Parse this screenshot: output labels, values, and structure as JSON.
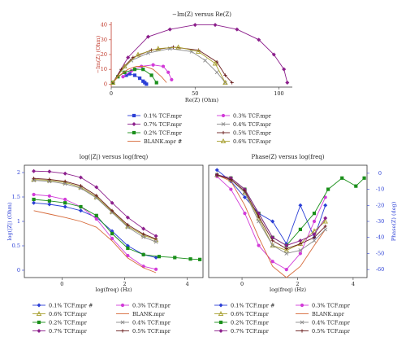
{
  "chart_data": [
    {
      "type": "line",
      "title": "−Im(Z) versus Re(Z)",
      "xlabel": "Re(Z) (Ohm)",
      "ylabel": "−Im(Z) (Ohm)",
      "xlim": [
        0,
        108
      ],
      "ylim": [
        -2,
        42
      ],
      "xticks": [
        0,
        50,
        100
      ],
      "yticks": [
        0,
        10,
        20,
        30,
        40
      ],
      "grid": false,
      "legend": "below",
      "series": [
        {
          "name": "0.1% TCF.mpr",
          "color": "#2b3fd6",
          "marker": "square",
          "x": [
            9,
            11,
            14,
            17,
            19,
            20,
            21
          ],
          "y": [
            6,
            7,
            6,
            4,
            2,
            1,
            0
          ]
        },
        {
          "name": "0.3% TCF.mpr",
          "color": "#d23bd8",
          "marker": "circle",
          "x": [
            7,
            12,
            18,
            25,
            31,
            34,
            36
          ],
          "y": [
            5,
            9,
            12,
            13,
            12,
            8,
            3
          ]
        },
        {
          "name": "0.7% TCF.mpr",
          "color": "#8c1f8c",
          "marker": "diamond",
          "x": [
            1,
            10,
            22,
            35,
            50,
            62,
            75,
            88,
            97,
            103,
            105
          ],
          "y": [
            1,
            18,
            32,
            37,
            40,
            40,
            37,
            30,
            20,
            10,
            1
          ]
        },
        {
          "name": "0.4% TCF.mpr",
          "color": "#8a8a8a",
          "marker": "cross",
          "x": [
            1,
            6,
            12,
            22,
            35,
            48,
            56,
            63,
            68
          ],
          "y": [
            1,
            9,
            16,
            21,
            24,
            22,
            16,
            8,
            1
          ]
        },
        {
          "name": "0.2% TCF.mpr",
          "color": "#1a8f1a",
          "marker": "square",
          "x": [
            1,
            4,
            8,
            14,
            19,
            24,
            27
          ],
          "y": [
            1,
            5,
            8,
            10,
            10,
            6,
            1
          ]
        },
        {
          "name": "0.5% TCF.mpr",
          "color": "#6b2020",
          "marker": "plus",
          "x": [
            1,
            6,
            13,
            24,
            37,
            52,
            63,
            68,
            72
          ],
          "y": [
            1,
            10,
            18,
            23,
            25,
            23,
            15,
            6,
            1
          ]
        },
        {
          "name": "BLANK.mpr #",
          "color": "#d66a3a",
          "marker": "none",
          "x": [
            1,
            5,
            10,
            15,
            20,
            25,
            30,
            33
          ],
          "y": [
            1,
            6,
            10,
            12,
            12,
            10,
            5,
            1
          ]
        },
        {
          "name": "0.6% TCF.mpr",
          "color": "#a8a030",
          "marker": "triangle",
          "x": [
            1,
            8,
            16,
            28,
            40,
            52,
            62,
            68
          ],
          "y": [
            1,
            12,
            20,
            24,
            25,
            22,
            14,
            1
          ]
        }
      ]
    },
    {
      "type": "line",
      "title": "log(|Z|) versus log(freq)",
      "xlabel": "log(freq) (Hz)",
      "ylabel": "log(|Z|) (Ohm)",
      "xlim": [
        -1.2,
        4.5
      ],
      "ylim": [
        -0.15,
        2.15
      ],
      "xticks": [
        0,
        2,
        4
      ],
      "yticks": [
        0,
        0.5,
        1,
        1.5,
        2
      ],
      "grid": false,
      "legend": "below",
      "series": [
        {
          "name": "0.1% TCF.mpr #",
          "color": "#2b3fd6",
          "marker": "diamond",
          "x": [
            -0.9,
            -0.4,
            0.1,
            0.6,
            1.1,
            1.6,
            2.1,
            2.6,
            3.0
          ],
          "y": [
            1.38,
            1.35,
            1.3,
            1.22,
            1.08,
            0.8,
            0.5,
            0.32,
            0.26
          ]
        },
        {
          "name": "0.3% TCF.mpr",
          "color": "#d23bd8",
          "marker": "circle",
          "x": [
            -0.9,
            -0.4,
            0.1,
            0.6,
            1.1,
            1.6,
            2.1,
            2.6,
            3.0
          ],
          "y": [
            1.55,
            1.52,
            1.45,
            1.3,
            1.05,
            0.65,
            0.3,
            0.08,
            0.02
          ]
        },
        {
          "name": "0.6% TCF.mpr",
          "color": "#a8a030",
          "marker": "triangle",
          "x": [
            -0.9,
            -0.4,
            0.1,
            0.6,
            1.1,
            1.6,
            2.1,
            2.6,
            3.0
          ],
          "y": [
            1.86,
            1.84,
            1.8,
            1.7,
            1.5,
            1.2,
            0.9,
            0.72,
            0.62
          ]
        },
        {
          "name": "BLANK.mpr",
          "color": "#d66a3a",
          "marker": "none",
          "x": [
            -0.9,
            -0.4,
            0.1,
            0.6,
            1.1,
            1.6,
            2.1,
            2.6,
            3.0
          ],
          "y": [
            1.22,
            1.15,
            1.08,
            1.0,
            0.88,
            0.6,
            0.25,
            0.05,
            -0.05
          ]
        },
        {
          "name": "0.2% TCF.mpr",
          "color": "#1a8f1a",
          "marker": "square",
          "x": [
            -0.9,
            -0.4,
            0.1,
            0.6,
            1.1,
            1.6,
            2.1,
            2.6,
            3.1,
            3.6,
            4.1,
            4.4
          ],
          "y": [
            1.45,
            1.42,
            1.38,
            1.3,
            1.12,
            0.75,
            0.45,
            0.32,
            0.28,
            0.26,
            0.23,
            0.22
          ]
        },
        {
          "name": "0.4% TCF.mpr",
          "color": "#8a8a8a",
          "marker": "cross",
          "x": [
            -0.9,
            -0.4,
            0.1,
            0.6,
            1.1,
            1.6,
            2.1,
            2.6,
            3.0
          ],
          "y": [
            1.84,
            1.82,
            1.77,
            1.68,
            1.48,
            1.18,
            0.88,
            0.68,
            0.58
          ]
        },
        {
          "name": "0.7% TCF.mpr",
          "color": "#8c1f8c",
          "marker": "diamond",
          "x": [
            -0.9,
            -0.4,
            0.1,
            0.6,
            1.1,
            1.6,
            2.1,
            2.6,
            3.0
          ],
          "y": [
            2.03,
            2.02,
            1.98,
            1.9,
            1.7,
            1.38,
            1.08,
            0.85,
            0.7
          ]
        },
        {
          "name": "0.5% TCF.mpr",
          "color": "#6b2020",
          "marker": "plus",
          "x": [
            -0.9,
            -0.4,
            0.1,
            0.6,
            1.1,
            1.6,
            2.1,
            2.6,
            3.0
          ],
          "y": [
            1.88,
            1.86,
            1.82,
            1.73,
            1.53,
            1.22,
            0.93,
            0.74,
            0.64
          ]
        }
      ]
    },
    {
      "type": "line",
      "title": "Phase(Z) versus log(freq)",
      "xlabel": "log(freq) (Hz)",
      "ylabel": "Phase(Z) (deg)",
      "xlim": [
        -1.2,
        4.5
      ],
      "ylim": [
        -65,
        5
      ],
      "xticks": [
        0,
        2,
        4
      ],
      "yticks": [
        0,
        -10,
        -20,
        -30,
        -40,
        -50,
        -60
      ],
      "grid": false,
      "legend": "below",
      "series": [
        {
          "name": "0.1% TCF.mpr #",
          "color": "#2b3fd6",
          "marker": "diamond",
          "x": [
            -0.9,
            -0.4,
            0.1,
            0.6,
            1.1,
            1.6,
            2.1,
            2.6,
            3.0
          ],
          "y": [
            2,
            -5,
            -15,
            -25,
            -30,
            -44,
            -20,
            -40,
            -20
          ]
        },
        {
          "name": "0.3% TCF.mpr",
          "color": "#d23bd8",
          "marker": "circle",
          "x": [
            -0.9,
            -0.4,
            0.1,
            0.6,
            1.1,
            1.6,
            2.1,
            2.6,
            3.0
          ],
          "y": [
            -2,
            -10,
            -25,
            -45,
            -55,
            -60,
            -50,
            -30,
            -15
          ]
        },
        {
          "name": "0.6% TCF.mpr",
          "color": "#a8a030",
          "marker": "triangle",
          "x": [
            -0.9,
            -0.4,
            0.1,
            0.6,
            1.1,
            1.6,
            2.1,
            2.6,
            3.0
          ],
          "y": [
            -1,
            -4,
            -12,
            -28,
            -45,
            -48,
            -44,
            -36,
            -30
          ]
        },
        {
          "name": "BLANK.mpr",
          "color": "#d66a3a",
          "marker": "none",
          "x": [
            -0.9,
            -0.4,
            0.1,
            0.6,
            1.1,
            1.6,
            2.1,
            2.6,
            3.0
          ],
          "y": [
            -1,
            -5,
            -20,
            -40,
            -58,
            -65,
            -58,
            -45,
            -35
          ]
        },
        {
          "name": "0.2% TCF.mpr",
          "color": "#1a8f1a",
          "marker": "square",
          "x": [
            -0.9,
            -0.4,
            0.1,
            0.6,
            1.1,
            1.6,
            2.1,
            2.6,
            3.1,
            3.6,
            4.1,
            4.4
          ],
          "y": [
            -1,
            -3,
            -10,
            -25,
            -40,
            -45,
            -35,
            -25,
            -10,
            -3,
            -8,
            -3
          ]
        },
        {
          "name": "0.4% TCF.mpr",
          "color": "#8a8a8a",
          "marker": "cross",
          "x": [
            -0.9,
            -0.4,
            0.1,
            0.6,
            1.1,
            1.6,
            2.1,
            2.6,
            3.0
          ],
          "y": [
            -1,
            -4,
            -12,
            -30,
            -45,
            -50,
            -48,
            -42,
            -35
          ]
        },
        {
          "name": "0.7% TCF.mpr",
          "color": "#8c1f8c",
          "marker": "diamond",
          "x": [
            -0.9,
            -0.4,
            0.1,
            0.6,
            1.1,
            1.6,
            2.1,
            2.6,
            3.0
          ],
          "y": [
            -1,
            -3,
            -10,
            -25,
            -40,
            -45,
            -42,
            -38,
            -28
          ]
        },
        {
          "name": "0.5% TCF.mpr",
          "color": "#6b2020",
          "marker": "plus",
          "x": [
            -0.9,
            -0.4,
            0.1,
            0.6,
            1.1,
            1.6,
            2.1,
            2.6,
            3.0
          ],
          "y": [
            -1,
            -4,
            -11,
            -27,
            -42,
            -47,
            -44,
            -40,
            -33
          ]
        }
      ]
    }
  ]
}
